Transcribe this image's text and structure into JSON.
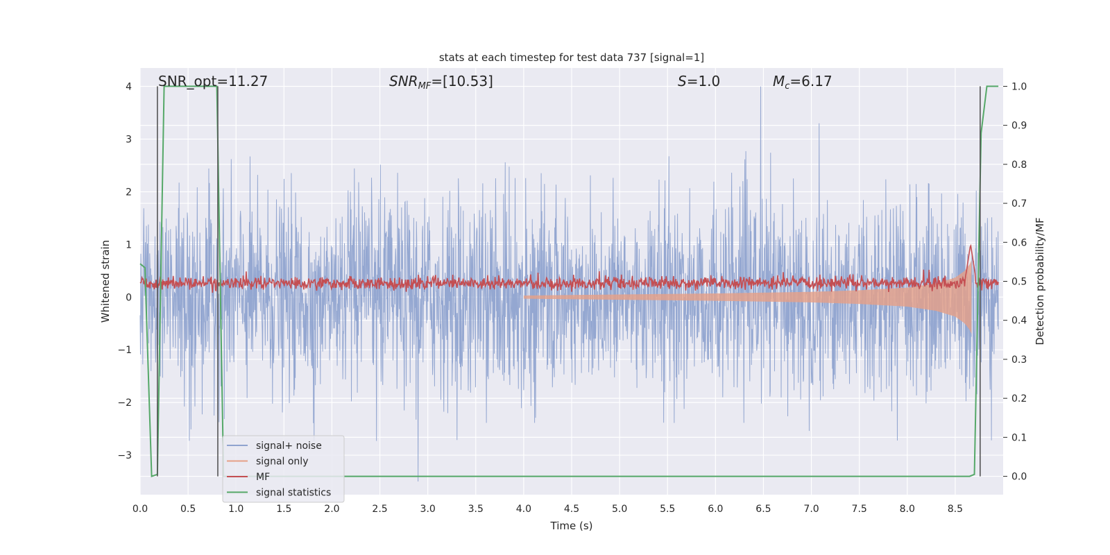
{
  "chart_data": {
    "type": "line",
    "title": "stats at each timestep for test data 737 [signal=1]",
    "xlabel": "Time (s)",
    "ylabel": "Whitened strain",
    "y2label": "Detection probability/MF",
    "xlim": [
      0.0,
      9.0
    ],
    "ylim": [
      -3.75,
      4.35
    ],
    "y2lim": [
      -0.047,
      1.047
    ],
    "x_ticks": [
      "0.0",
      "0.5",
      "1.0",
      "1.5",
      "2.0",
      "2.5",
      "3.0",
      "3.5",
      "4.0",
      "4.5",
      "5.0",
      "5.5",
      "6.0",
      "6.5",
      "7.0",
      "7.5",
      "8.0",
      "8.5"
    ],
    "y_ticks": [
      "4",
      "3",
      "2",
      "1",
      "0",
      "−1",
      "−2",
      "−3"
    ],
    "y2_ticks": [
      "1.0",
      "0.9",
      "0.8",
      "0.7",
      "0.6",
      "0.5",
      "0.4",
      "0.3",
      "0.2",
      "0.1",
      "0.0"
    ],
    "grid": true,
    "legend_position": "lower-left",
    "annotations": {
      "snr_opt": "SNR_opt=11.27",
      "snr_mf_main": "SNR",
      "snr_mf_sub": "MF",
      "snr_mf_rest": "=[10.53]",
      "s_main": "S",
      "s_rest": "=1.0",
      "mc_main": "M",
      "mc_sub": "c",
      "mc_rest": "=6.17"
    },
    "series": [
      {
        "name": "signal+ noise",
        "color": "#8fa3cf",
        "axis": "left",
        "description_values": {
          "typical_amplitude": 1.0,
          "max_spikes": [
            [
              6.47,
              4.0
            ],
            [
              7.08,
              3.3
            ],
            [
              2.9,
              -3.5
            ]
          ]
        }
      },
      {
        "name": "signal only",
        "color": "#e6a087",
        "axis": "left",
        "envelope": {
          "x": [
            4.0,
            5.0,
            6.0,
            7.0,
            7.5,
            8.0,
            8.3,
            8.5,
            8.6,
            8.65,
            8.67
          ],
          "amp": [
            0.03,
            0.05,
            0.07,
            0.1,
            0.13,
            0.18,
            0.26,
            0.37,
            0.5,
            0.62,
            0.7
          ]
        }
      },
      {
        "name": "MF",
        "color": "#c44e52",
        "axis": "right",
        "baseline": 0.495,
        "peak": {
          "x": 8.66,
          "y": 0.595
        }
      },
      {
        "name": "signal statistics",
        "color": "#55a868",
        "axis": "right",
        "x": [
          0.0,
          0.05,
          0.12,
          0.18,
          0.25,
          0.8,
          0.87,
          0.95,
          8.65,
          8.7,
          8.77,
          8.83,
          8.95
        ],
        "y": [
          0.545,
          0.535,
          -0.0,
          0.005,
          1.0,
          1.0,
          0.0,
          0.0,
          0.0,
          0.005,
          0.88,
          1.0,
          1.0
        ]
      }
    ],
    "vertical_lines": [
      0.18,
      0.81,
      8.76
    ],
    "legend": [
      "signal+ noise",
      "signal only",
      "MF",
      "signal statistics"
    ]
  }
}
